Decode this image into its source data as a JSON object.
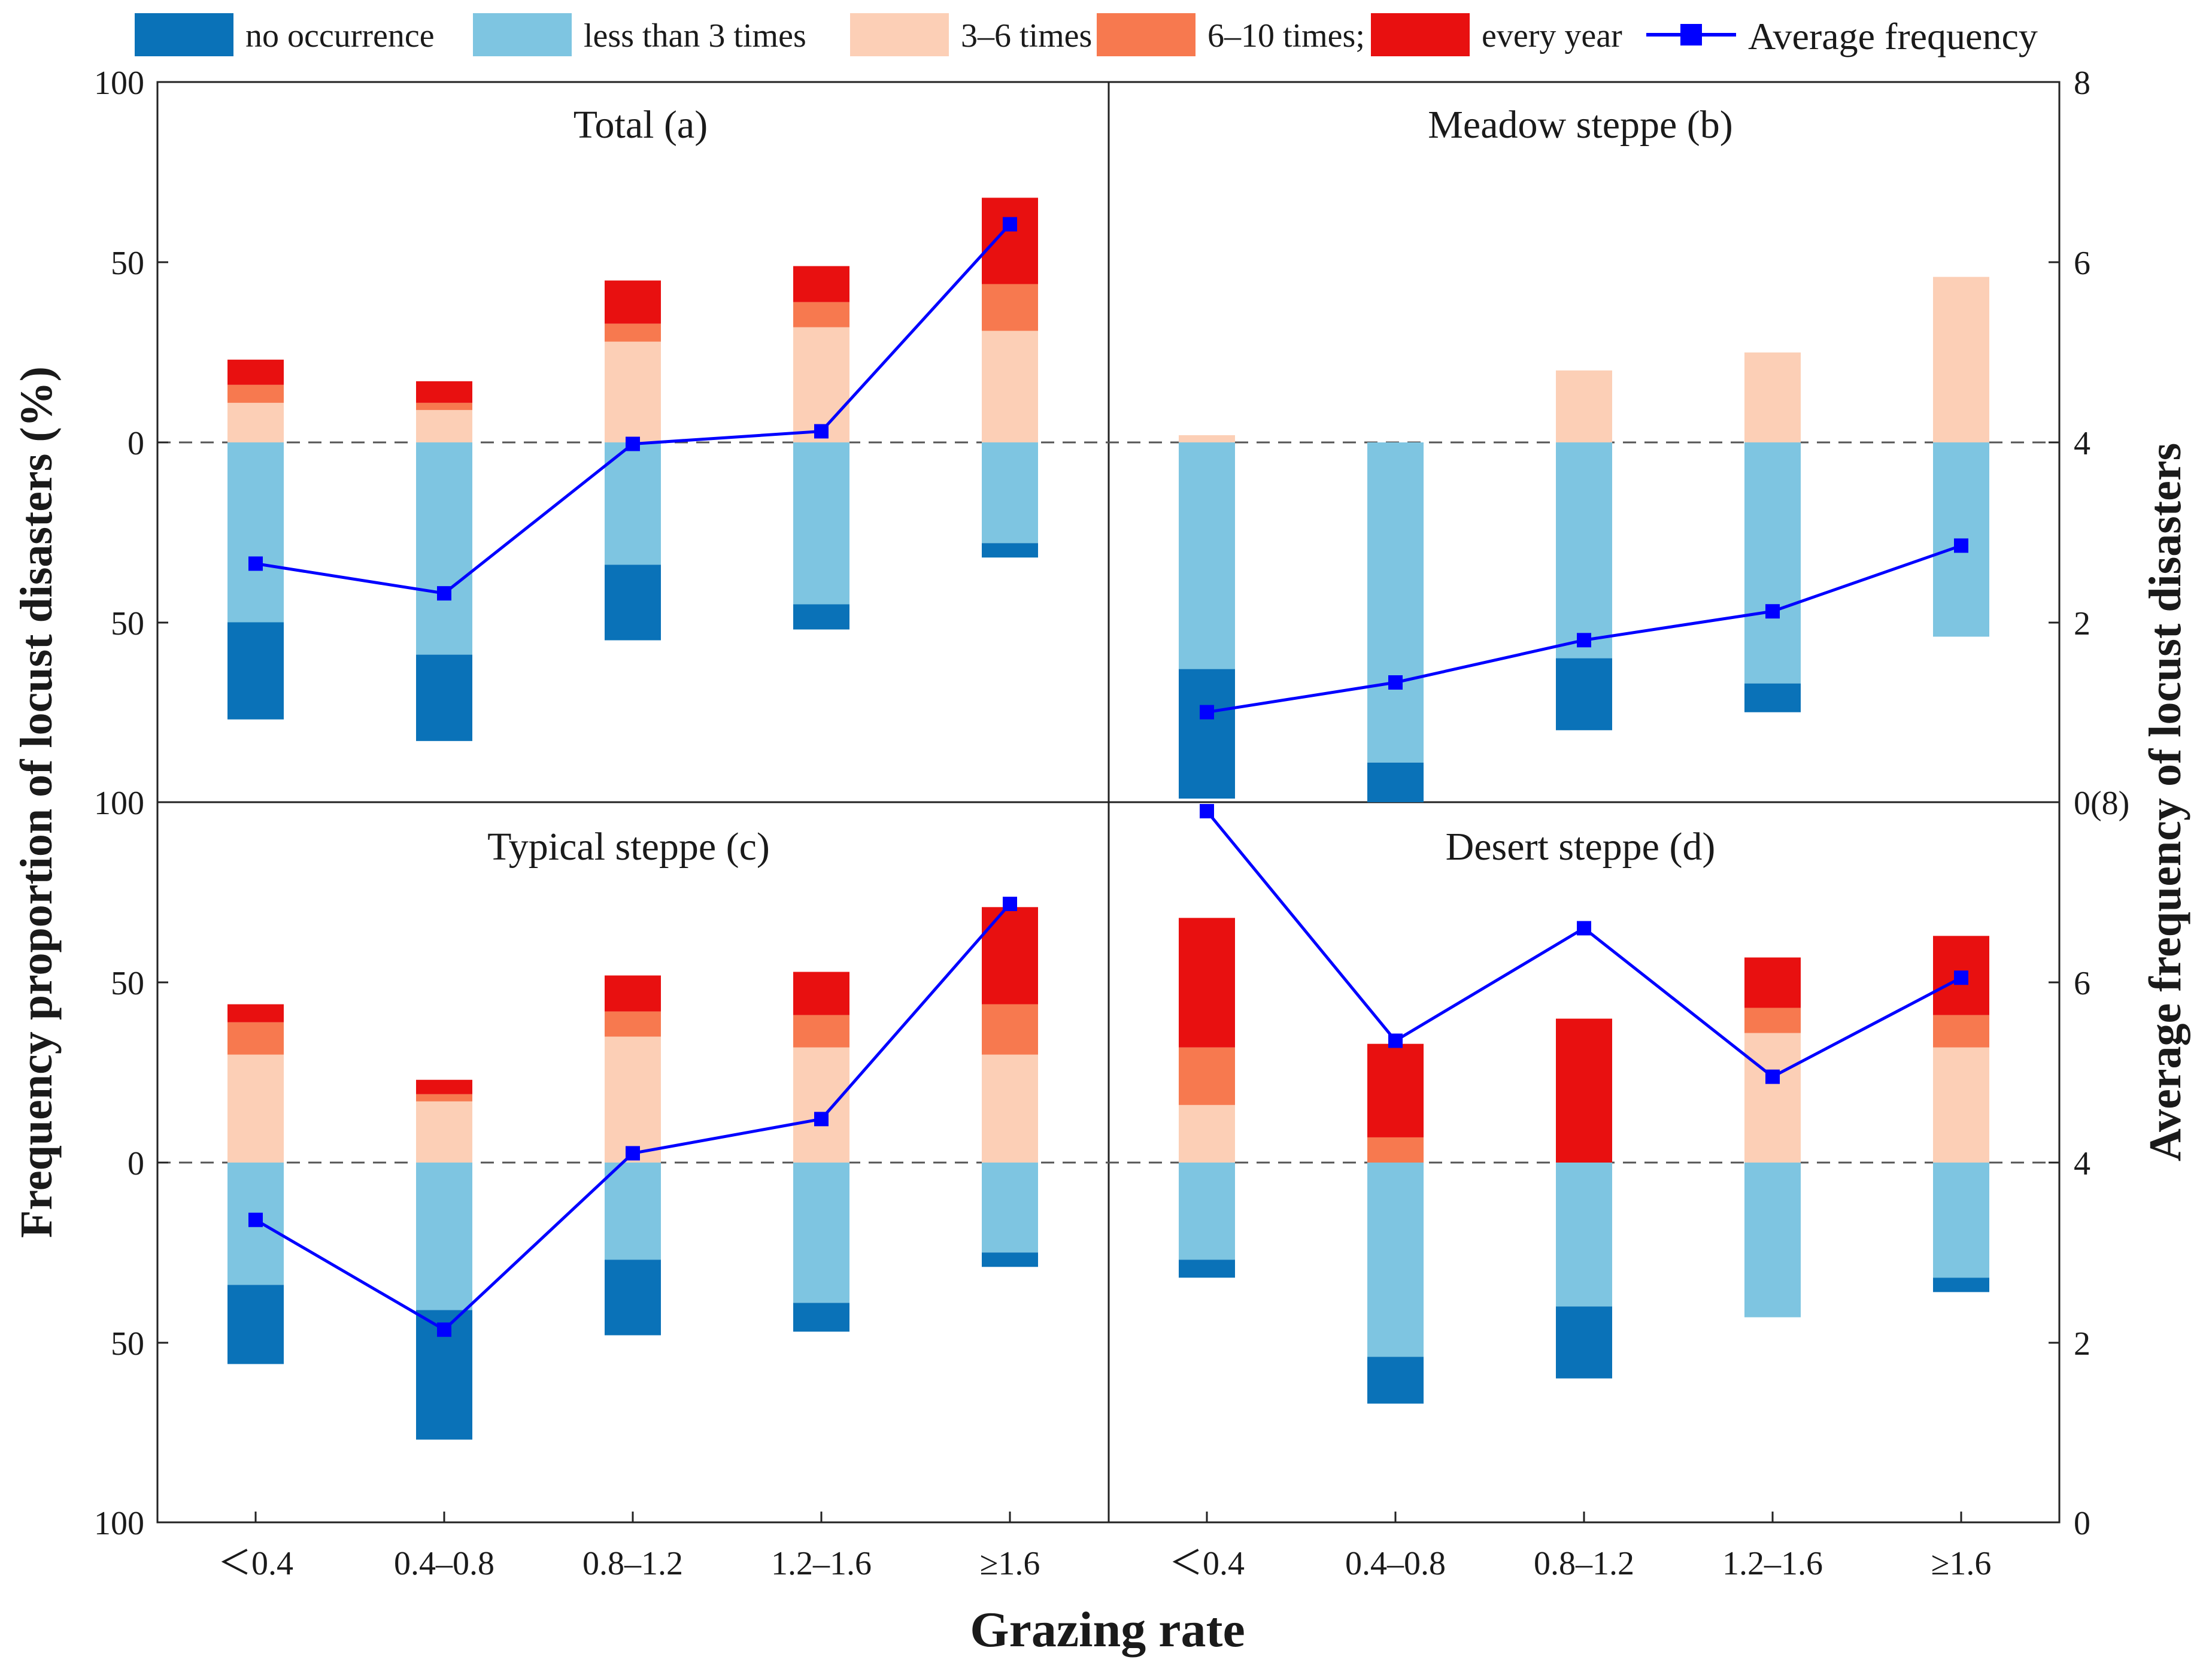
{
  "chart_data": {
    "type": "bar",
    "xlabel": "Grazing rate",
    "ylabel_left": "Frequency proportion of locust disasters (%)",
    "ylabel_right": "Average frequency of locust disasters",
    "categories": [
      "<0.4",
      "0.4–0.8",
      "0.8–1.2",
      "1.2–1.6",
      "≥1.6"
    ],
    "category_labels": [
      "＜0.4",
      "0.4–0.8",
      "0.8–1.2",
      "1.2–1.6",
      "≥1.6"
    ],
    "left_ticks_top": [
      "100",
      "50",
      "0",
      "50",
      "100"
    ],
    "left_ticks_bottom": [
      "50",
      "0",
      "50",
      "100"
    ],
    "right_ticks_top": [
      "8",
      "6",
      "4",
      "2",
      "0(8)"
    ],
    "right_ticks_bottom": [
      "6",
      "4",
      "2",
      "0"
    ],
    "ylim_percent": [
      -100,
      100
    ],
    "ylim_average_frequency": [
      0,
      8
    ],
    "legend": {
      "items": [
        {
          "key": "no_occurrence",
          "label": "no occurrence",
          "color": "#0a72b8"
        },
        {
          "key": "less_than_3",
          "label": "less than 3 times",
          "color": "#7ec5e1"
        },
        {
          "key": "t3_6",
          "label": "3–6 times",
          "color": "#fccfb6"
        },
        {
          "key": "t6_10",
          "label": "6–10 times;",
          "color": "#f7794f"
        },
        {
          "key": "every_year",
          "label": "every year",
          "color": "#e81010"
        }
      ],
      "line_label": "Average frequency",
      "line_color": "#0000ff"
    },
    "panels": [
      {
        "title": "Total (a)",
        "below": {
          "less_than_3": [
            50,
            59,
            34,
            45,
            28
          ],
          "no_occurrence": [
            27,
            24,
            21,
            7,
            4
          ]
        },
        "above": {
          "t3_6": [
            11,
            9,
            28,
            32,
            31
          ],
          "t6_10": [
            5,
            2,
            5,
            7,
            13
          ],
          "every_year": [
            7,
            6,
            12,
            10,
            24
          ]
        },
        "average_frequency": [
          2.65,
          2.32,
          3.98,
          4.12,
          6.42
        ]
      },
      {
        "title": "Meadow steppe (b)",
        "below": {
          "less_than_3": [
            63,
            89,
            60,
            67,
            54
          ],
          "no_occurrence": [
            36,
            11,
            20,
            8,
            0
          ]
        },
        "above": {
          "t3_6": [
            2,
            0,
            20,
            25,
            46
          ],
          "t6_10": [
            0,
            0,
            0,
            0,
            0
          ],
          "every_year": [
            0,
            0,
            0,
            0,
            0
          ]
        },
        "average_frequency": [
          1.0,
          1.33,
          1.8,
          2.12,
          2.85
        ]
      },
      {
        "title": "Typical steppe (c)",
        "below": {
          "less_than_3": [
            34,
            41,
            27,
            39,
            25
          ],
          "no_occurrence": [
            22,
            36,
            21,
            8,
            4
          ]
        },
        "above": {
          "t3_6": [
            30,
            17,
            35,
            32,
            30
          ],
          "t6_10": [
            9,
            2,
            7,
            9,
            14
          ],
          "every_year": [
            5,
            4,
            10,
            12,
            27
          ]
        },
        "average_frequency": [
          3.36,
          2.14,
          4.1,
          4.48,
          6.87
        ]
      },
      {
        "title": "Desert steppe (d)",
        "below": {
          "less_than_3": [
            27,
            54,
            40,
            43,
            32
          ],
          "no_occurrence": [
            5,
            13,
            20,
            0,
            4
          ]
        },
        "above": {
          "t3_6": [
            16,
            0,
            0,
            36,
            32
          ],
          "t6_10": [
            16,
            7,
            0,
            7,
            9
          ],
          "every_year": [
            36,
            26,
            40,
            14,
            22
          ]
        },
        "average_frequency": [
          7.9,
          5.35,
          6.6,
          4.95,
          6.05
        ]
      }
    ]
  }
}
